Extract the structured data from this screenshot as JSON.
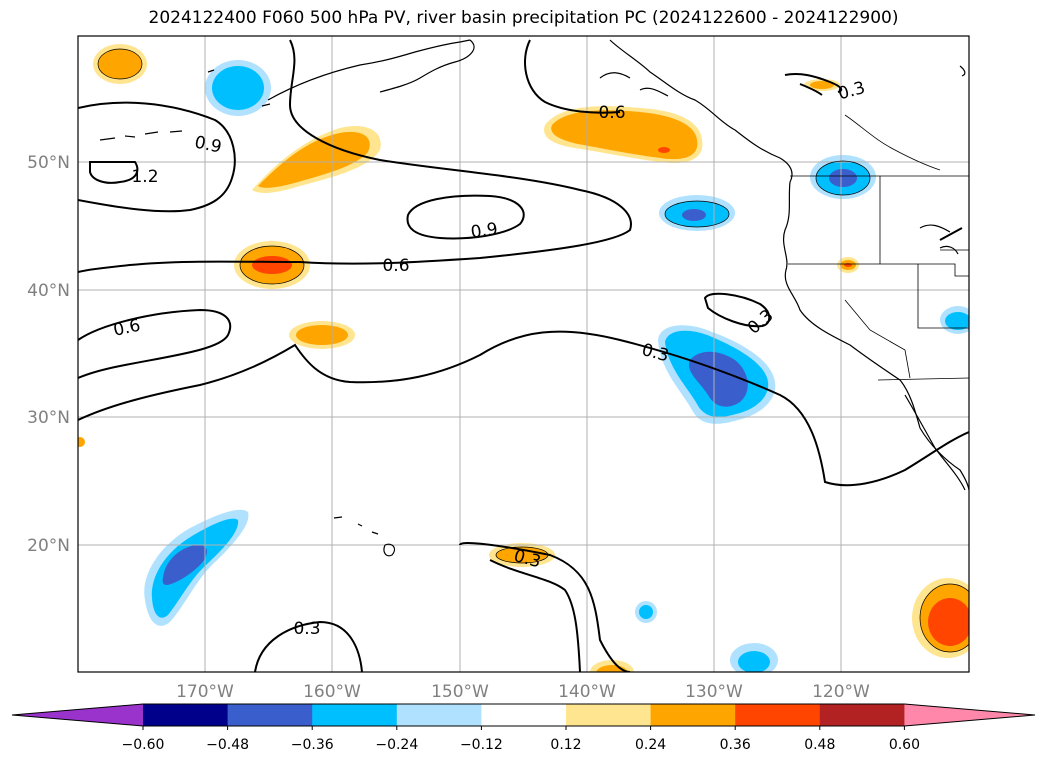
{
  "title": "2024122400 F060 500 hPa PV, river basin precipitation PC (2024122600 - 2024122900)",
  "lat_labels": [
    "50°N",
    "40°N",
    "30°N",
    "20°N"
  ],
  "lon_labels": [
    "170°W",
    "160°W",
    "150°W",
    "140°W",
    "130°W",
    "120°W"
  ],
  "contour_labels": [
    "0.9",
    "1.2",
    "0.9",
    "0.6",
    "0.6",
    "0.6",
    "0.3",
    "0.3",
    "0.3",
    "0.3",
    "0.3"
  ],
  "colorbar": {
    "colors": [
      "#9933cc",
      "#00008b",
      "#3a5fcd",
      "#00bfff",
      "#b0e2ff",
      "#ffffff",
      "#ffe58f",
      "#ffa500",
      "#ff4500",
      "#b22222",
      "#ff88aa"
    ],
    "tick_labels": [
      "−0.60",
      "−0.48",
      "−0.36",
      "−0.24",
      "−0.12",
      "0.12",
      "0.24",
      "0.36",
      "0.48",
      "0.60"
    ]
  }
}
